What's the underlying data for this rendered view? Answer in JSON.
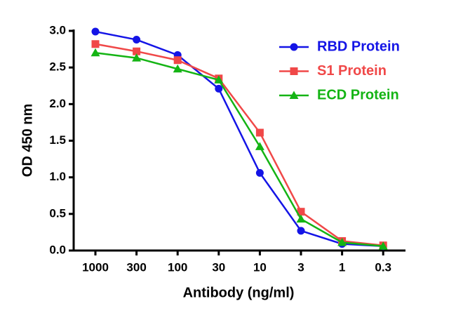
{
  "chart_data": {
    "type": "line",
    "x_label": "Antibody (ng/ml)",
    "y_label": "OD 450 nm",
    "categories": [
      "1000",
      "300",
      "100",
      "30",
      "10",
      "3",
      "1",
      "0.3"
    ],
    "ylim": [
      0,
      3
    ],
    "yticks": [
      {
        "value": 0,
        "label": "0.0"
      },
      {
        "value": 0.5,
        "label": "0.5"
      },
      {
        "value": 1,
        "label": "1.0"
      },
      {
        "value": 1.5,
        "label": "1.5"
      },
      {
        "value": 2,
        "label": "2.0"
      },
      {
        "value": 2.5,
        "label": "2.5"
      },
      {
        "value": 3,
        "label": "3.0"
      }
    ],
    "legend": "top-right",
    "series": [
      {
        "name": "RBD Protein",
        "color": "#1414e6",
        "marker": "circle",
        "values": [
          2.99,
          2.88,
          2.67,
          2.21,
          1.06,
          0.27,
          0.09,
          0.06
        ]
      },
      {
        "name": "S1 Protein",
        "color": "#f04848",
        "marker": "square",
        "values": [
          2.82,
          2.72,
          2.6,
          2.35,
          1.61,
          0.53,
          0.13,
          0.07
        ]
      },
      {
        "name": "ECD Protein",
        "color": "#14b414",
        "marker": "triangle",
        "values": [
          2.7,
          2.63,
          2.48,
          2.33,
          1.42,
          0.43,
          0.11,
          0.06
        ]
      }
    ]
  }
}
